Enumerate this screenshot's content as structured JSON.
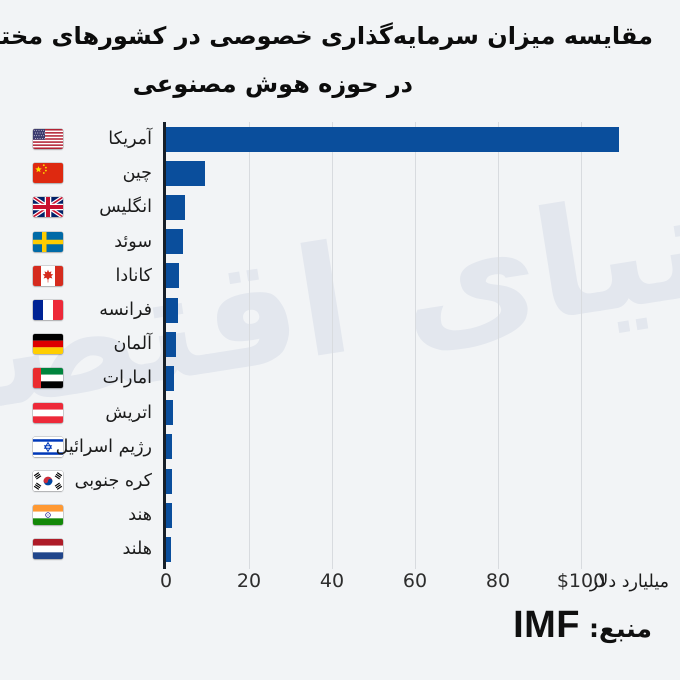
{
  "title": {
    "line1": "مقایسه میزان سرمایه‌گذاری خصوصی در کشورهای مختلف",
    "line2": "در حوزه هوش مصنوعی"
  },
  "watermark": "دنیای اقتصاد",
  "source": {
    "label": "منبع:",
    "value": "IMF"
  },
  "colors": {
    "background": "#f2f4f6",
    "bar": "#0a4e9c",
    "axis_line": "#161f29",
    "gridline": "#d8dbdf",
    "watermark": "#e3e7ee",
    "text": "#0c0c0c"
  },
  "chart_data": {
    "type": "bar",
    "orientation": "horizontal",
    "title": "مقایسه میزان سرمایه‌گذاری خصوصی در کشورهای مختلف در حوزه هوش مصنوعی",
    "xlabel": "میلیارد دلار",
    "ylabel": "",
    "unit_label": "میلیارد دلار",
    "grid": true,
    "legend": "none",
    "xlim": [
      0,
      120
    ],
    "x_tick_labels": [
      "0",
      "20",
      "40",
      "60",
      "80",
      "$100"
    ],
    "x_tick_values": [
      0,
      20,
      40,
      60,
      80,
      100
    ],
    "categories": [
      "آمریکا",
      "چین",
      "انگلیس",
      "سوئد",
      "کانادا",
      "فرانسه",
      "آلمان",
      "امارات",
      "اتریش",
      "رژیم اسرائیل",
      "کره جنوبی",
      "هند",
      "هلند"
    ],
    "values": [
      109.1,
      9.3,
      4.5,
      4.2,
      3.2,
      2.9,
      2.3,
      1.9,
      1.7,
      1.5,
      1.45,
      1.4,
      1.3
    ],
    "flag_codes": [
      "us",
      "cn",
      "gb",
      "se",
      "ca",
      "fr",
      "de",
      "ae",
      "at",
      "il",
      "kr",
      "in",
      "nl"
    ],
    "flag_icon_names": [
      "flag-usa-icon",
      "flag-china-icon",
      "flag-uk-icon",
      "flag-sweden-icon",
      "flag-canada-icon",
      "flag-france-icon",
      "flag-germany-icon",
      "flag-uae-icon",
      "flag-austria-icon",
      "flag-israel-icon",
      "flag-south-korea-icon",
      "flag-india-icon",
      "flag-netherlands-icon"
    ]
  }
}
